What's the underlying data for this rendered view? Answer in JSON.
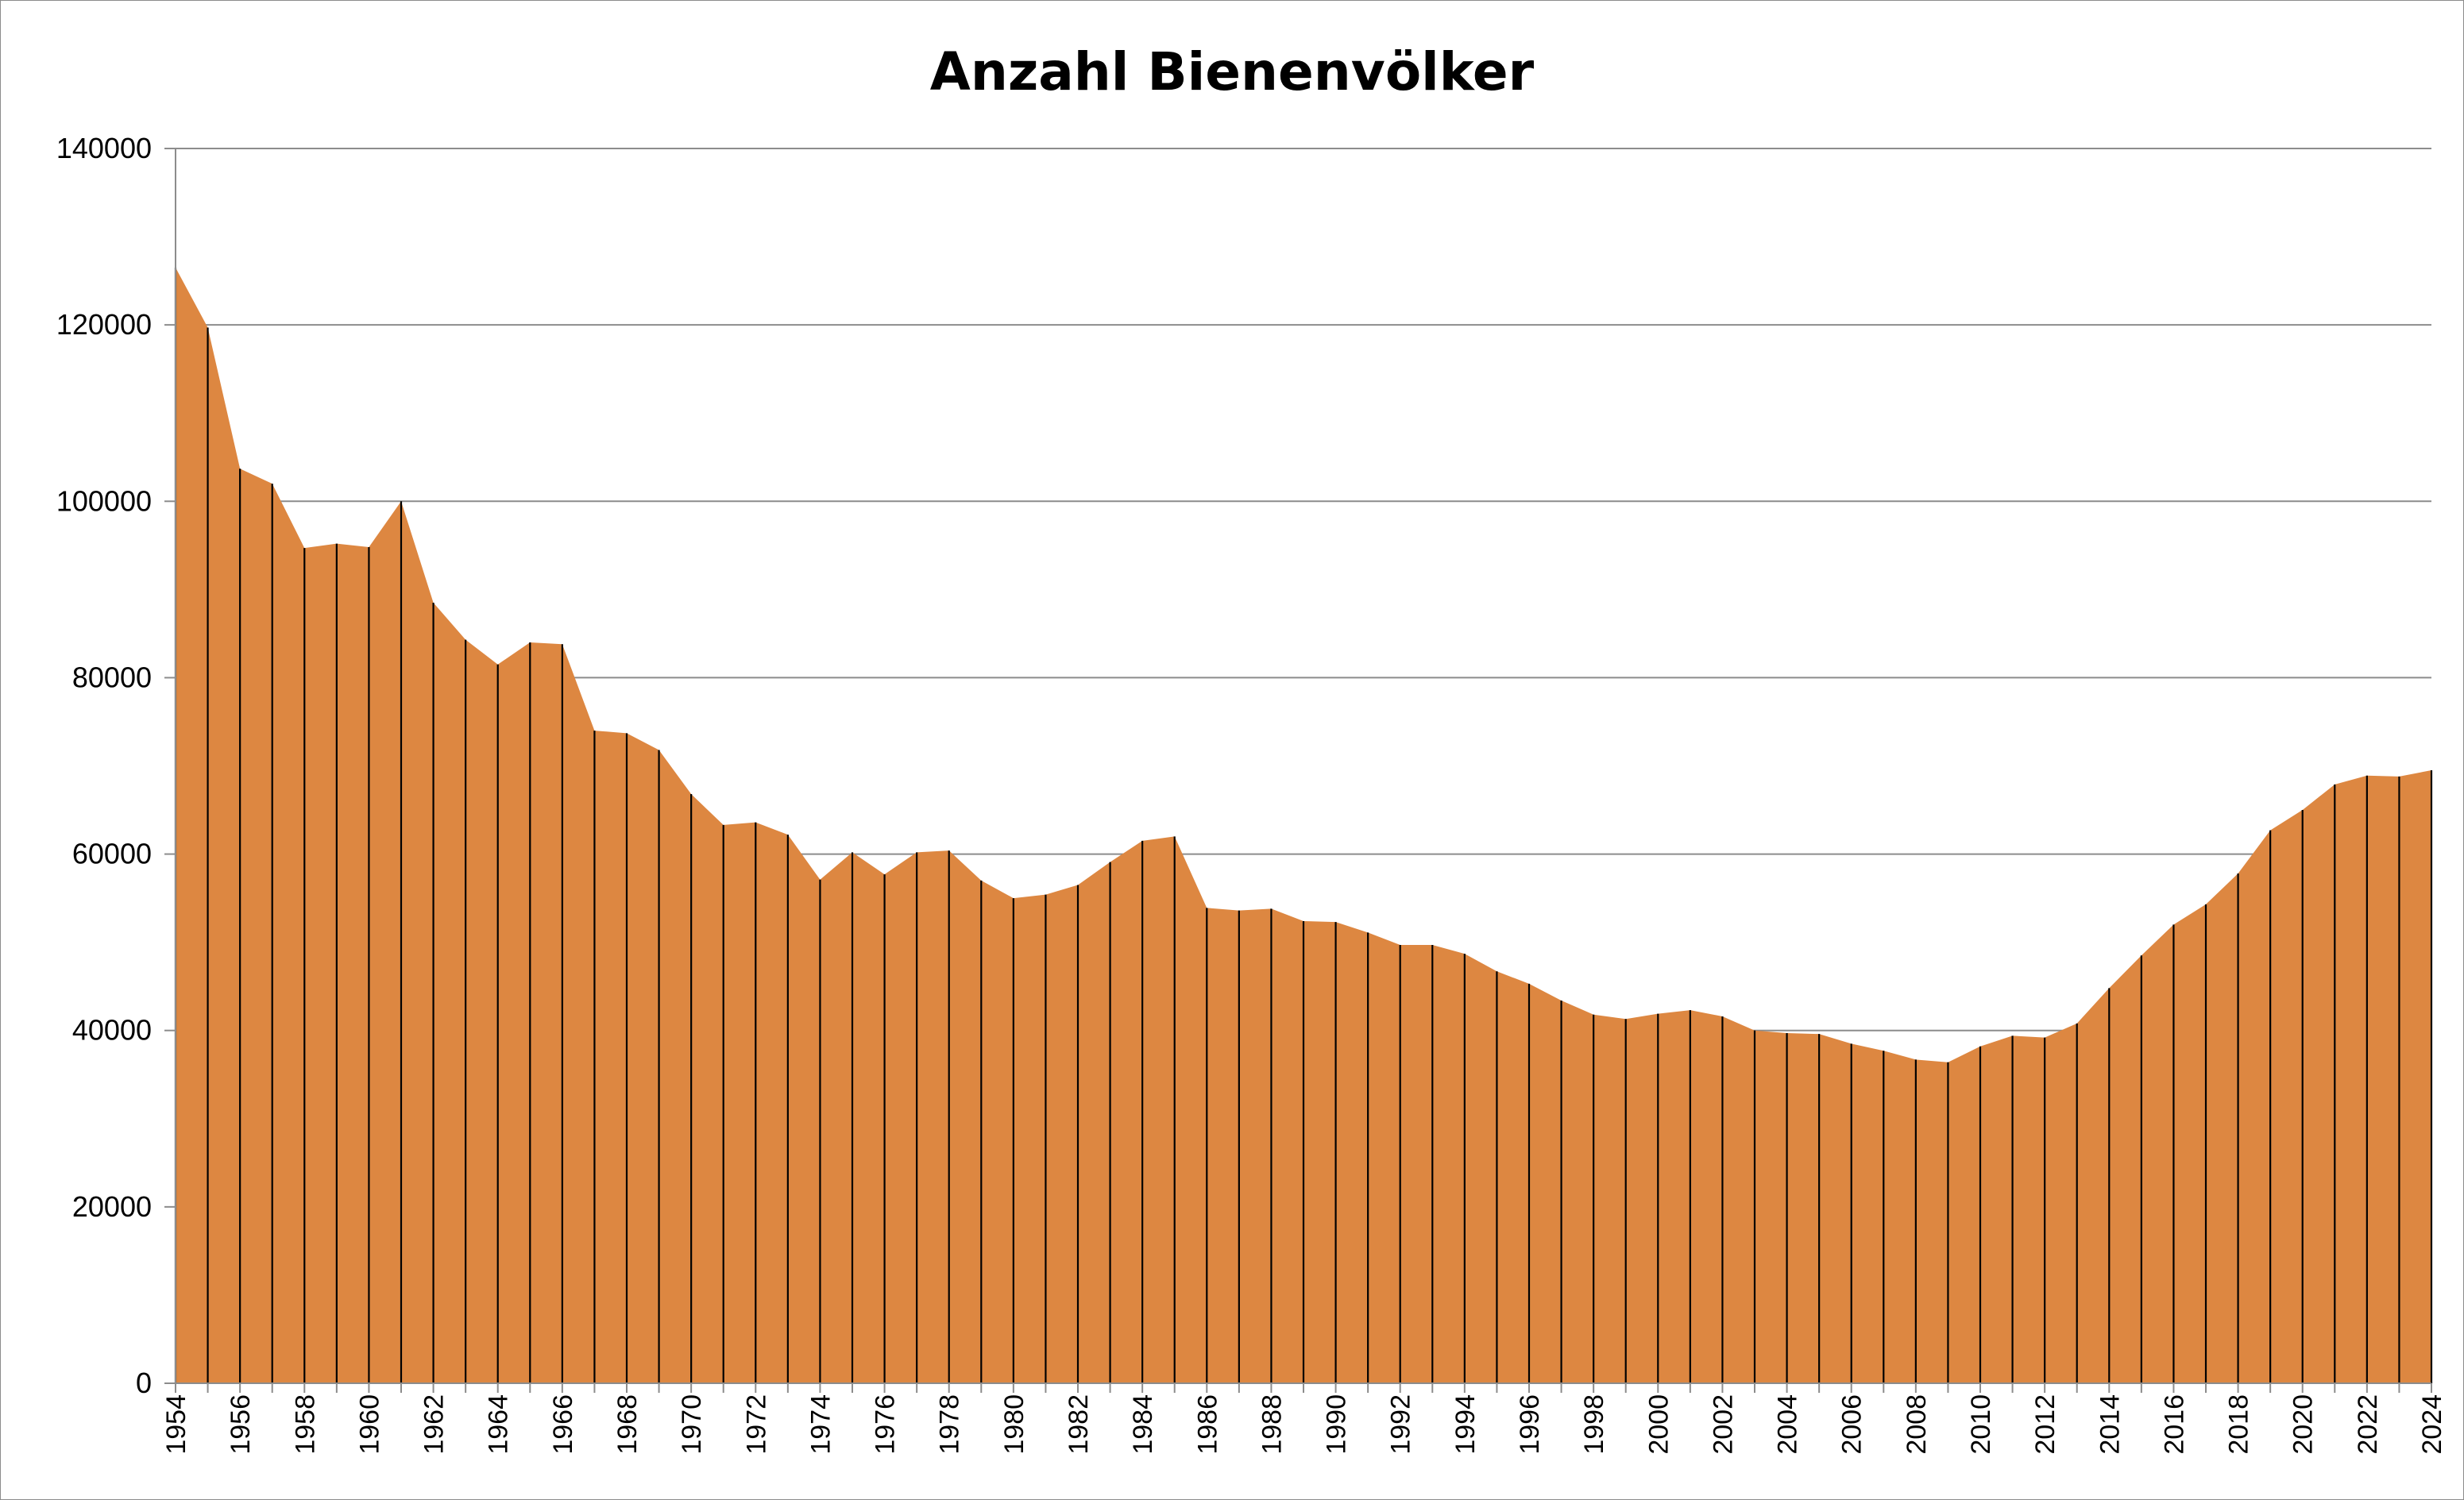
{
  "chart_data": {
    "type": "area",
    "title": "Anzahl Bienenvölker",
    "xlabel": "",
    "ylabel": "",
    "x": [
      1954,
      1955,
      1956,
      1957,
      1958,
      1959,
      1960,
      1961,
      1962,
      1963,
      1964,
      1965,
      1966,
      1967,
      1968,
      1969,
      1970,
      1971,
      1972,
      1973,
      1974,
      1975,
      1976,
      1977,
      1978,
      1979,
      1980,
      1981,
      1982,
      1983,
      1984,
      1985,
      1986,
      1987,
      1988,
      1989,
      1990,
      1991,
      1992,
      1993,
      1994,
      1995,
      1996,
      1997,
      1998,
      1999,
      2000,
      2001,
      2002,
      2003,
      2004,
      2005,
      2006,
      2007,
      2008,
      2009,
      2010,
      2011,
      2012,
      2013,
      2014,
      2015,
      2016,
      2017,
      2018,
      2019,
      2020,
      2021,
      2022,
      2023,
      2024
    ],
    "values": [
      126500,
      119700,
      103700,
      102000,
      94700,
      95200,
      94800,
      100000,
      88500,
      84300,
      81500,
      84000,
      83800,
      74000,
      73700,
      71800,
      66800,
      63300,
      63600,
      62200,
      57100,
      60200,
      57700,
      60200,
      60400,
      57000,
      55000,
      55400,
      56500,
      59100,
      61500,
      62000,
      53900,
      53600,
      53800,
      52400,
      52300,
      51100,
      49700,
      49700,
      48700,
      46700,
      45300,
      43400,
      41800,
      41300,
      41900,
      42300,
      41600,
      40000,
      39700,
      39600,
      38500,
      37700,
      36700,
      36400,
      38200,
      39400,
      39200,
      40800,
      44800,
      48500,
      52000,
      54300,
      57800,
      62700,
      65000,
      67900,
      68900,
      68800,
      69500
    ],
    "xtick_labels": [
      "1954",
      "1956",
      "1958",
      "1960",
      "1962",
      "1964",
      "1966",
      "1968",
      "1970",
      "1972",
      "1974",
      "1976",
      "1978",
      "1980",
      "1982",
      "1984",
      "1986",
      "1988",
      "1990",
      "1992",
      "1994",
      "1996",
      "1998",
      "2000",
      "2002",
      "2004",
      "2006",
      "2008",
      "2010",
      "2012",
      "2014",
      "2016",
      "2018",
      "2020",
      "2022",
      "2024"
    ],
    "ytick_labels": [
      "0",
      "20000",
      "40000",
      "60000",
      "80000",
      "100000",
      "120000",
      "140000"
    ],
    "ylim": [
      0,
      140000
    ],
    "xlim": [
      1954,
      2024
    ],
    "grid": "horizontal",
    "legend": "none",
    "colors": {
      "fill": "#DD8741",
      "drop_lines": "#000000",
      "gridlines": "#8C8C8C",
      "axis": "#8C8C8C"
    }
  }
}
